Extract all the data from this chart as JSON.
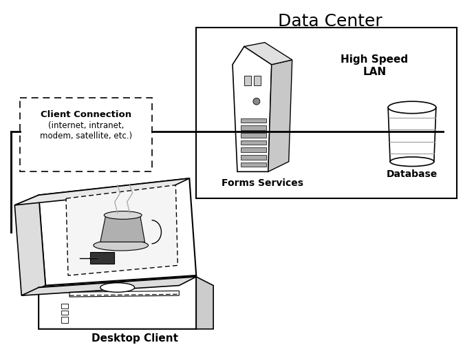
{
  "title": "Data Center",
  "background_color": "#ffffff",
  "fig_width": 6.89,
  "fig_height": 5.01,
  "forms_services_label": "Forms Services",
  "database_label": "Database",
  "high_speed_lan_label": "High Speed\nLAN",
  "client_connection_label": "Client Connection",
  "client_connection_sub": "(internet, intranet,\nmodem, satellite, etc.)",
  "desktop_client_label": "Desktop Client"
}
